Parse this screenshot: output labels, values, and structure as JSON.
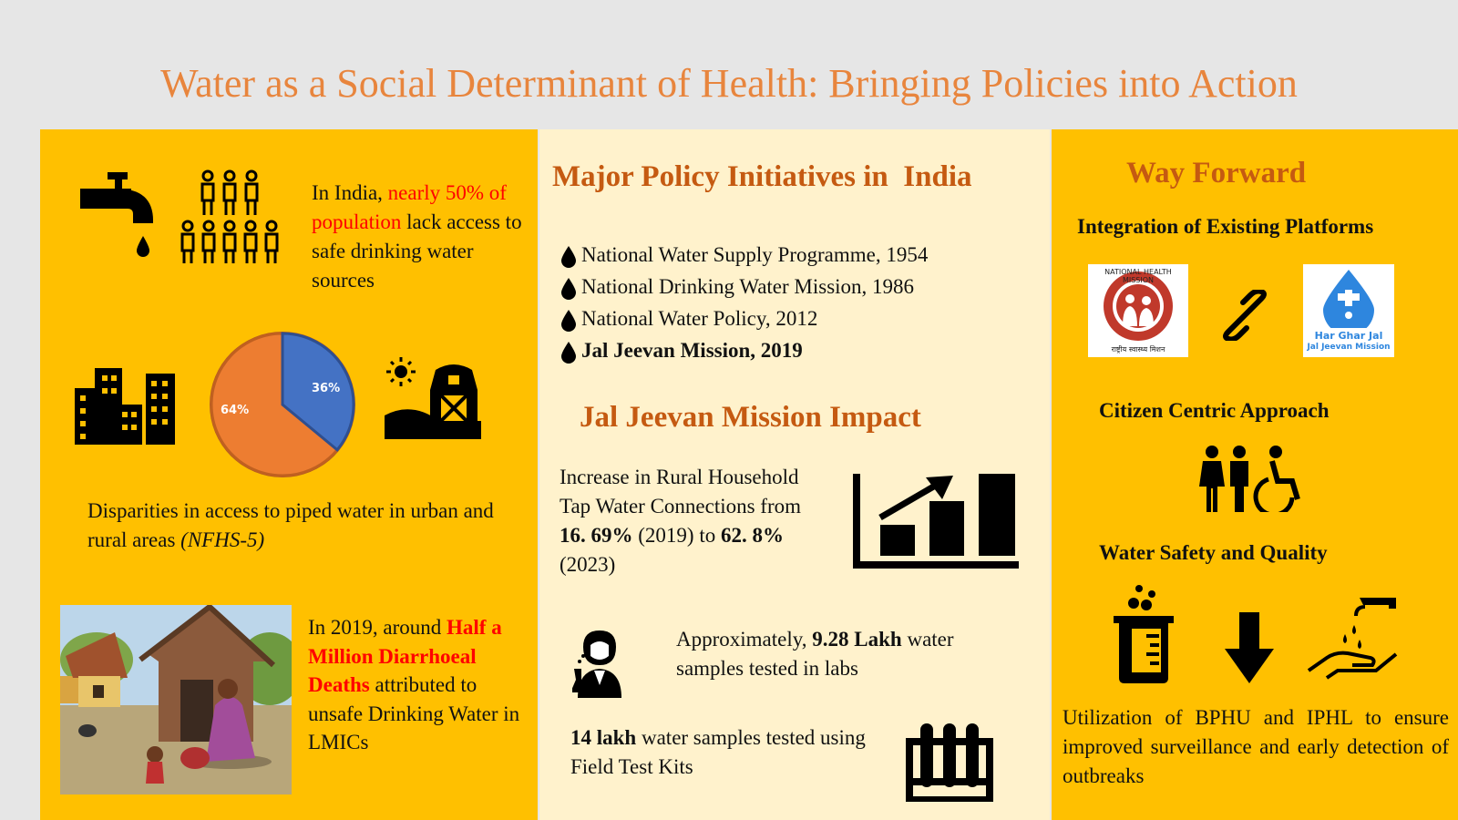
{
  "title": "Water as a Social Determinant of Health: Bringing Policies into Action",
  "left": {
    "stat1": {
      "prefix": "In India, ",
      "highlight": "nearly 50% of population",
      "suffix": " lack access to safe drinking water sources"
    },
    "pie": {
      "urban_pct": 36,
      "rural_pct": 64,
      "urban_label": "36%",
      "rural_label": "64%",
      "urban_color": "#4472c4",
      "rural_color": "#ed7d31"
    },
    "disparity": {
      "text": "Disparities in access to piped water in urban and rural areas ",
      "source": "(NFHS-5)"
    },
    "stat2": {
      "prefix": "In 2019, around ",
      "highlight": "Half a Million Diarrhoeal Deaths",
      "suffix": " attributed to unsafe Drinking Water in LMICs"
    }
  },
  "middle": {
    "heading": "Major Policy Initiatives in  India",
    "policies": [
      "National Water Supply Programme, 1954",
      "National Drinking Water Mission, 1986",
      "National Water Policy, 2012",
      "Jal Jeevan Mission, 2019"
    ],
    "impact_heading": "Jal Jeevan Mission Impact",
    "impact": {
      "t1": "Increase in Rural Household Tap Water Connections from ",
      "v1": "16. 69%",
      "t2": " (2019) to ",
      "v2": "62. 8%",
      "t3": " (2023)"
    },
    "labs": {
      "t1": "Approximately, ",
      "v": "9.28 Lakh",
      "t2": " water samples tested in labs"
    },
    "field": {
      "v": "14 lakh",
      "t": " water samples tested using Field Test Kits"
    }
  },
  "right": {
    "heading": "Way Forward",
    "integration": "Integration of Existing Platforms",
    "nhm_logo_text": "NATIONAL HEALTH MISSION",
    "nhm_hindi": "राष्ट्रीय स्वास्थ्य मिशन",
    "hgj_logo_line1": "Har Ghar Jal",
    "hgj_logo_line2": "Jal Jeevan Mission",
    "citizen": "Citizen Centric Approach",
    "safety": "Water Safety and Quality",
    "utilization": "Utilization of BPHU and IPHL to ensure improved surveillance and early detection of outbreaks"
  }
}
